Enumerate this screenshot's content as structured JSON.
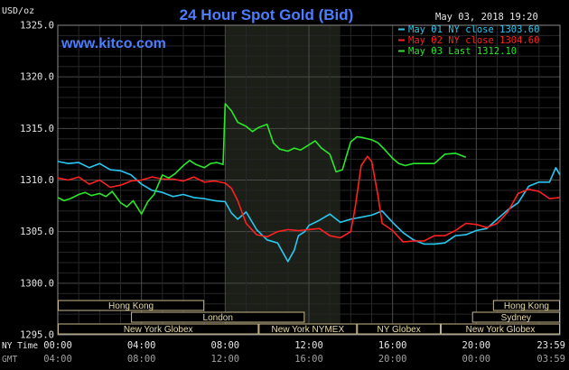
{
  "chart_data": {
    "type": "line",
    "title": "24 Hour Spot Gold (Bid)",
    "ylabel": "USD/oz",
    "date_label": "May 03, 2018 19:20",
    "watermark": "www.kitco.com",
    "y_ticks": [
      "1325.0",
      "1320.0",
      "1315.0",
      "1310.0",
      "1305.0",
      "1300.0",
      "1295.0"
    ],
    "ylim": [
      1295,
      1325
    ],
    "xlim": [
      0,
      24
    ],
    "grid": true,
    "legend_position": "top-right",
    "x_rows": [
      {
        "name": "NY Time",
        "labels": [
          "00:00",
          "04:00",
          "08:00",
          "12:00",
          "16:00",
          "20:00",
          "23:59"
        ]
      },
      {
        "name": "GMT",
        "labels": [
          "04:00",
          "08:00",
          "12:00",
          "16:00",
          "20:00",
          "00:00",
          "03:59"
        ]
      }
    ],
    "series": [
      {
        "name": "May 01 NY close 1303.60",
        "color": "#28c8f0",
        "x": [
          0,
          0.5,
          1,
          1.5,
          2,
          2.5,
          3,
          3.5,
          4,
          4.5,
          5,
          5.5,
          6,
          6.5,
          7,
          7.5,
          8,
          8.3,
          8.6,
          9,
          9.5,
          10,
          10.5,
          11,
          11.3,
          11.5,
          11.8,
          12,
          12.5,
          13,
          13.5,
          14,
          14.5,
          15,
          15.5,
          16,
          16.5,
          17,
          17.5,
          18,
          18.5,
          19,
          19.5,
          20,
          20.5,
          21,
          21.5,
          22,
          22.5,
          23,
          23.5,
          23.8,
          24
        ],
        "y": [
          1311.8,
          1311.6,
          1311.7,
          1311.2,
          1311.6,
          1311.0,
          1310.9,
          1310.5,
          1309.6,
          1309.0,
          1308.8,
          1308.4,
          1308.6,
          1308.3,
          1308.2,
          1308.0,
          1307.9,
          1306.8,
          1306.2,
          1306.9,
          1305.2,
          1304.2,
          1303.9,
          1302.1,
          1303.2,
          1304.6,
          1305.0,
          1305.6,
          1306.1,
          1306.7,
          1305.9,
          1306.2,
          1306.4,
          1306.6,
          1307.0,
          1305.9,
          1304.9,
          1304.2,
          1303.8,
          1303.8,
          1303.9,
          1304.6,
          1304.7,
          1305.1,
          1305.3,
          1306.2,
          1307.1,
          1307.8,
          1309.4,
          1309.8,
          1309.8,
          1311.2,
          1310.5
        ]
      },
      {
        "name": "May 02 NY close 1304.60",
        "color": "#ff2020",
        "x": [
          0,
          0.5,
          1,
          1.5,
          2,
          2.5,
          3,
          3.5,
          4,
          4.5,
          5,
          5.5,
          6,
          6.5,
          7,
          7.5,
          8,
          8.3,
          8.6,
          9,
          9.5,
          10,
          10.5,
          11,
          11.5,
          12,
          12.5,
          13,
          13.5,
          14,
          14.2,
          14.5,
          14.8,
          15,
          15.3,
          15.5,
          16,
          16.5,
          17,
          17.5,
          18,
          18.5,
          19,
          19.5,
          20,
          20.5,
          21,
          21.5,
          22,
          22.5,
          23,
          23.5,
          24
        ],
        "y": [
          1310.2,
          1310.0,
          1310.3,
          1309.6,
          1310.0,
          1309.3,
          1309.5,
          1309.9,
          1310.0,
          1310.3,
          1310.1,
          1310.1,
          1309.9,
          1310.3,
          1309.8,
          1309.9,
          1309.7,
          1309.2,
          1308.0,
          1305.8,
          1304.7,
          1304.5,
          1305.0,
          1305.2,
          1305.1,
          1305.2,
          1305.3,
          1304.6,
          1304.4,
          1305.0,
          1307.2,
          1311.4,
          1312.3,
          1311.8,
          1308.5,
          1305.8,
          1305.1,
          1304.0,
          1304.1,
          1304.1,
          1304.6,
          1304.6,
          1305.1,
          1305.8,
          1305.7,
          1305.4,
          1305.8,
          1306.9,
          1308.7,
          1309.1,
          1308.9,
          1308.2,
          1308.3
        ]
      },
      {
        "name": "May 03 Last 1312.10",
        "color": "#28e828",
        "x": [
          0,
          0.3,
          0.6,
          1,
          1.3,
          1.6,
          2,
          2.3,
          2.6,
          3,
          3.3,
          3.6,
          4,
          4.3,
          4.6,
          5,
          5.3,
          5.6,
          6,
          6.3,
          6.6,
          7,
          7.3,
          7.6,
          7.9,
          8,
          8.3,
          8.6,
          9,
          9.3,
          9.6,
          10,
          10.3,
          10.6,
          11,
          11.3,
          11.6,
          12,
          12.3,
          12.6,
          13,
          13.3,
          13.6,
          14,
          14.3,
          14.6,
          15,
          15.3,
          15.6,
          16,
          16.3,
          16.6,
          17,
          17.5,
          18,
          18.5,
          19,
          19.5
        ],
        "y": [
          1308.3,
          1308.0,
          1308.2,
          1308.6,
          1308.8,
          1308.5,
          1308.7,
          1308.4,
          1308.9,
          1307.8,
          1307.4,
          1308.0,
          1306.7,
          1307.9,
          1308.6,
          1310.5,
          1310.2,
          1310.6,
          1311.4,
          1311.9,
          1311.5,
          1311.2,
          1311.6,
          1311.7,
          1311.5,
          1317.4,
          1316.7,
          1315.6,
          1315.2,
          1314.7,
          1315.1,
          1315.4,
          1313.6,
          1313.0,
          1312.8,
          1313.1,
          1312.9,
          1313.4,
          1313.8,
          1313.1,
          1312.5,
          1310.8,
          1311.0,
          1313.7,
          1314.2,
          1314.1,
          1313.9,
          1313.6,
          1313.0,
          1312.1,
          1311.6,
          1311.4,
          1311.6,
          1311.6,
          1311.6,
          1312.5,
          1312.6,
          1312.2
        ]
      }
    ],
    "markets": [
      {
        "label": "Hong Kong",
        "start": 0,
        "end": 7.0,
        "row": 0
      },
      {
        "label": "Hong Kong",
        "start": 20.8,
        "end": 24,
        "row": 0
      },
      {
        "label": "London",
        "start": 3.5,
        "end": 11.8,
        "row": 1
      },
      {
        "label": "Sydney",
        "start": 19.8,
        "end": 24,
        "row": 1
      },
      {
        "label": "New York Globex",
        "start": 0,
        "end": 9.6,
        "row": 2
      },
      {
        "label": "New York NYMEX",
        "start": 9.6,
        "end": 14.3,
        "row": 2
      },
      {
        "label": "NY Globex",
        "start": 14.3,
        "end": 18.3,
        "row": 2
      },
      {
        "label": "New York Globex",
        "start": 18.3,
        "end": 24,
        "row": 2
      }
    ],
    "shade_range": [
      8.0,
      13.5
    ]
  }
}
